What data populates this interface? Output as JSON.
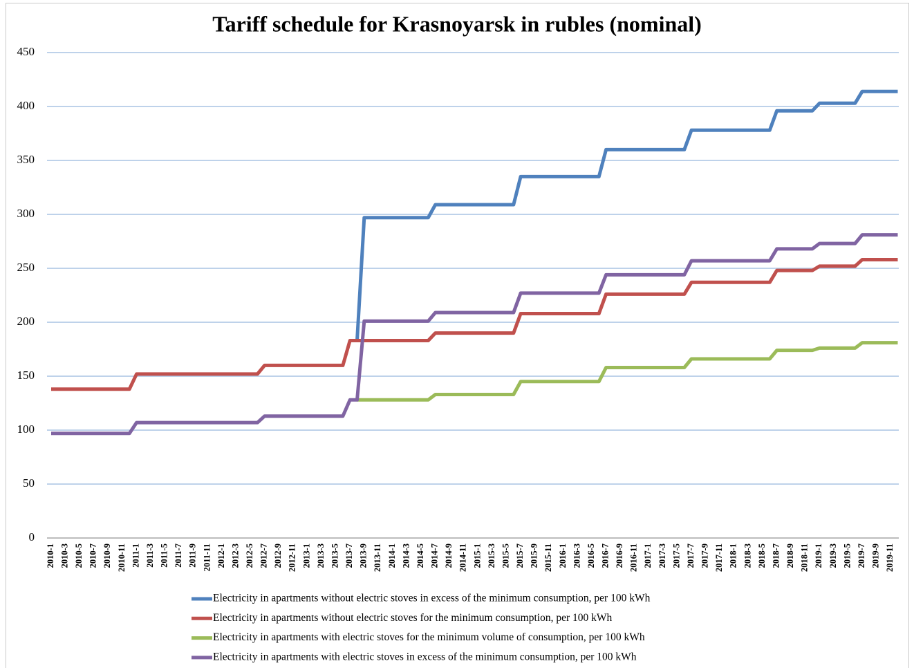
{
  "chart_data": {
    "type": "line",
    "title": "Tariff schedule for Krasnoyarsk   in rubles (nominal)",
    "categories": [
      "2010-1",
      null,
      "2010-3",
      null,
      "2010-5",
      null,
      "2010-7",
      null,
      "2010-9",
      null,
      "2010-11",
      null,
      "2011-1",
      null,
      "2011-3",
      null,
      "2011-5",
      null,
      "2011-7",
      null,
      "2011-9",
      null,
      "2011-11",
      null,
      "2012-1",
      null,
      "2012-3",
      null,
      "2012-5",
      null,
      "2012-7",
      null,
      "2012-9",
      null,
      "2012-11",
      null,
      "2013-1",
      null,
      "2013-3",
      null,
      "2013-5",
      null,
      "2013-7",
      null,
      "2013-9",
      null,
      "2013-11",
      null,
      "2014-1",
      null,
      "2014-3",
      null,
      "2014-5",
      null,
      "2014-7",
      null,
      "2014-9",
      null,
      "2014-11",
      null,
      "2015-1",
      null,
      "2015-3",
      null,
      "2015-5",
      null,
      "2015-7",
      null,
      "2015-9",
      null,
      "2015-11",
      null,
      "2016-1",
      null,
      "2016-3",
      null,
      "2016-5",
      null,
      "2016-7",
      null,
      "2016-9",
      null,
      "2016-11",
      null,
      "2017-1",
      null,
      "2017-3",
      null,
      "2017-5",
      null,
      "2017-7",
      null,
      "2017-9",
      null,
      "2017-11",
      null,
      "2018-1",
      null,
      "2018-3",
      null,
      "2018-5",
      null,
      "2018-7",
      null,
      "2018-9",
      null,
      "2018-11",
      null,
      "2019-1",
      null,
      "2019-3",
      null,
      "2019-5",
      null,
      "2019-7",
      null,
      "2019-9",
      null,
      "2019-11",
      null
    ],
    "series": [
      {
        "name": "Electricity in apartments without electric stoves in excess of the minimum consumption, per 100 kWh",
        "color": "#4f81bd",
        "values": [
          null,
          null,
          null,
          null,
          null,
          null,
          null,
          null,
          null,
          null,
          null,
          null,
          null,
          null,
          null,
          null,
          null,
          null,
          null,
          null,
          null,
          null,
          null,
          null,
          null,
          null,
          null,
          null,
          null,
          null,
          null,
          null,
          null,
          null,
          null,
          null,
          null,
          null,
          null,
          null,
          null,
          null,
          null,
          183,
          297,
          297,
          297,
          297,
          297,
          297,
          297,
          297,
          297,
          297,
          309,
          309,
          309,
          309,
          309,
          309,
          309,
          309,
          309,
          309,
          309,
          309,
          335,
          335,
          335,
          335,
          335,
          335,
          335,
          335,
          335,
          335,
          335,
          335,
          360,
          360,
          360,
          360,
          360,
          360,
          360,
          360,
          360,
          360,
          360,
          360,
          378,
          378,
          378,
          378,
          378,
          378,
          378,
          378,
          378,
          378,
          378,
          378,
          396,
          396,
          396,
          396,
          396,
          396,
          403,
          403,
          403,
          403,
          403,
          403,
          414,
          414,
          414,
          414,
          414,
          414
        ]
      },
      {
        "name": "Electricity in apartments without electric stoves for the minimum consumption, per 100 kWh",
        "color": "#c0504d",
        "values": [
          138,
          138,
          138,
          138,
          138,
          138,
          138,
          138,
          138,
          138,
          138,
          138,
          152,
          152,
          152,
          152,
          152,
          152,
          152,
          152,
          152,
          152,
          152,
          152,
          152,
          152,
          152,
          152,
          152,
          152,
          160,
          160,
          160,
          160,
          160,
          160,
          160,
          160,
          160,
          160,
          160,
          160,
          183,
          183,
          183,
          183,
          183,
          183,
          183,
          183,
          183,
          183,
          183,
          183,
          190,
          190,
          190,
          190,
          190,
          190,
          190,
          190,
          190,
          190,
          190,
          190,
          208,
          208,
          208,
          208,
          208,
          208,
          208,
          208,
          208,
          208,
          208,
          208,
          226,
          226,
          226,
          226,
          226,
          226,
          226,
          226,
          226,
          226,
          226,
          226,
          237,
          237,
          237,
          237,
          237,
          237,
          237,
          237,
          237,
          237,
          237,
          237,
          248,
          248,
          248,
          248,
          248,
          248,
          252,
          252,
          252,
          252,
          252,
          252,
          258,
          258,
          258,
          258,
          258,
          258
        ]
      },
      {
        "name": "Electricity in apartments with electric stoves for the minimum volume of consumption, per 100 kWh",
        "color": "#9bbb59",
        "values": [
          null,
          null,
          null,
          null,
          null,
          null,
          null,
          null,
          null,
          null,
          null,
          null,
          null,
          null,
          null,
          null,
          null,
          null,
          null,
          null,
          null,
          null,
          null,
          null,
          null,
          null,
          null,
          null,
          null,
          null,
          null,
          null,
          null,
          null,
          null,
          null,
          null,
          null,
          null,
          null,
          null,
          null,
          null,
          128,
          128,
          128,
          128,
          128,
          128,
          128,
          128,
          128,
          128,
          128,
          133,
          133,
          133,
          133,
          133,
          133,
          133,
          133,
          133,
          133,
          133,
          133,
          145,
          145,
          145,
          145,
          145,
          145,
          145,
          145,
          145,
          145,
          145,
          145,
          158,
          158,
          158,
          158,
          158,
          158,
          158,
          158,
          158,
          158,
          158,
          158,
          166,
          166,
          166,
          166,
          166,
          166,
          166,
          166,
          166,
          166,
          166,
          166,
          174,
          174,
          174,
          174,
          174,
          174,
          176,
          176,
          176,
          176,
          176,
          176,
          181,
          181,
          181,
          181,
          181,
          181
        ]
      },
      {
        "name": "Electricity in apartments with electric stoves in excess of the minimum consumption, per 100 kWh",
        "color": "#8064a2",
        "values": [
          97,
          97,
          97,
          97,
          97,
          97,
          97,
          97,
          97,
          97,
          97,
          97,
          107,
          107,
          107,
          107,
          107,
          107,
          107,
          107,
          107,
          107,
          107,
          107,
          107,
          107,
          107,
          107,
          107,
          107,
          113,
          113,
          113,
          113,
          113,
          113,
          113,
          113,
          113,
          113,
          113,
          113,
          128,
          128,
          201,
          201,
          201,
          201,
          201,
          201,
          201,
          201,
          201,
          201,
          209,
          209,
          209,
          209,
          209,
          209,
          209,
          209,
          209,
          209,
          209,
          209,
          227,
          227,
          227,
          227,
          227,
          227,
          227,
          227,
          227,
          227,
          227,
          227,
          244,
          244,
          244,
          244,
          244,
          244,
          244,
          244,
          244,
          244,
          244,
          244,
          257,
          257,
          257,
          257,
          257,
          257,
          257,
          257,
          257,
          257,
          257,
          257,
          268,
          268,
          268,
          268,
          268,
          268,
          273,
          273,
          273,
          273,
          273,
          273,
          281,
          281,
          281,
          281,
          281,
          281
        ]
      }
    ],
    "ylim": [
      0,
      450
    ],
    "yticks": [
      0,
      50,
      100,
      150,
      200,
      250,
      300,
      350,
      400,
      450
    ],
    "grid": true,
    "legend": "bottom"
  }
}
